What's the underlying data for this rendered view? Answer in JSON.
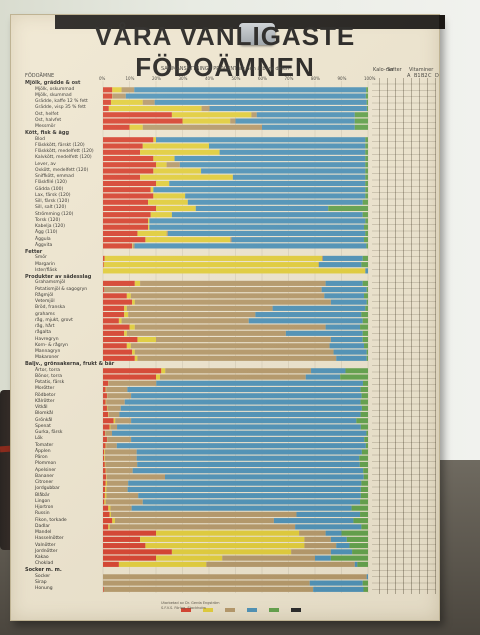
{
  "poster": {
    "title": "VÅRA VANLIGASTE FÖDOÄMNEN",
    "column_header": "FÖDOÄMNE",
    "composition_header": "SAMMANSÄTTNING I PROCENT av den ätbara delen",
    "right_headers": [
      "Kalo-rier",
      "Salter",
      "Vitaminer"
    ],
    "vitamin_cols": [
      "A",
      "B1",
      "B2",
      "C",
      "D"
    ],
    "axis_ticks": [
      "0%",
      "10%",
      "20%",
      "30%",
      "40%",
      "50%",
      "60%",
      "70%",
      "80%",
      "90%",
      "100%"
    ]
  },
  "colors": {
    "protein": "#d8412d",
    "fat": "#e4cf3a",
    "carbohydrate": "#b79a6a",
    "water": "#4f93b8",
    "other": "#64a34c",
    "waste": "#2a2a2a"
  },
  "sections": [
    {
      "label": "Mjölk, grädde & ost",
      "rows": [
        {
          "name": "Mjölk, oskummad",
          "c": [
            3.5,
            3.5,
            4.8,
            87.5,
            0.7,
            0
          ]
        },
        {
          "name": "Mjölk, skummad",
          "c": [
            3.5,
            0.1,
            5,
            90.6,
            0.8,
            0
          ]
        },
        {
          "name": "Grädde, kaffe 12 % fett",
          "c": [
            3,
            12,
            4.5,
            80,
            0.5,
            0
          ]
        },
        {
          "name": "Grädde, visp 35 % fett",
          "c": [
            2.2,
            35,
            3,
            59.4,
            0.4,
            0
          ]
        },
        {
          "name": "Ost, helfet",
          "c": [
            26,
            30,
            2,
            37,
            5,
            0
          ]
        },
        {
          "name": "Ost, halvfet",
          "c": [
            30,
            18,
            2,
            45,
            5,
            0
          ]
        },
        {
          "name": "Messmör",
          "c": [
            10,
            5,
            45,
            35,
            5,
            0
          ]
        }
      ]
    },
    {
      "label": "Kött, fisk & ägg",
      "rows": [
        {
          "name": "Blod",
          "c": [
            19,
            1,
            0,
            79,
            1,
            0
          ]
        },
        {
          "name": "Fläskkött, färskt (120)",
          "c": [
            15,
            25,
            0,
            59,
            1,
            0
          ]
        },
        {
          "name": "Fläskkött, medelfett (120)",
          "c": [
            14,
            30,
            0,
            55,
            1,
            0
          ]
        },
        {
          "name": "Kalvkött, medelfett (120)",
          "c": [
            19,
            8,
            0,
            72,
            1,
            0
          ]
        },
        {
          "name": "Lever, av",
          "c": [
            20,
            4,
            5,
            70,
            1,
            0
          ]
        },
        {
          "name": "Oxkött, medelfett (120)",
          "c": [
            19,
            18,
            0,
            62,
            1,
            0
          ]
        },
        {
          "name": "Sniffkött, emmad",
          "c": [
            14,
            35,
            0,
            50,
            1,
            0
          ]
        },
        {
          "name": "Fläskfilé (120)",
          "c": [
            20,
            5,
            0,
            74,
            1,
            0
          ]
        },
        {
          "name": "Gädda (100)",
          "c": [
            18,
            1,
            0,
            80,
            1,
            0
          ]
        },
        {
          "name": "Lax, färsk (120)",
          "c": [
            19,
            12,
            0,
            68,
            1,
            0
          ]
        },
        {
          "name": "Sill, färsk (120)",
          "c": [
            17,
            15,
            0,
            66,
            2,
            0
          ]
        },
        {
          "name": "Sill, salt (120)",
          "c": [
            20,
            15,
            0,
            50,
            15,
            0
          ]
        },
        {
          "name": "Strömming (120)",
          "c": [
            18,
            8,
            0,
            72,
            2,
            0
          ]
        },
        {
          "name": "Torsk (120)",
          "c": [
            17,
            0.5,
            0,
            81.5,
            1,
            0
          ]
        },
        {
          "name": "Kabelja (120)",
          "c": [
            17,
            0.5,
            0,
            81,
            1.5,
            0
          ]
        },
        {
          "name": "Ägg (110)",
          "c": [
            13,
            11,
            0.5,
            74.5,
            1,
            0
          ]
        },
        {
          "name": "Äggula",
          "c": [
            16,
            32,
            0.5,
            50,
            1.5,
            0
          ]
        },
        {
          "name": "Äggvita",
          "c": [
            11,
            0.2,
            0.7,
            87.5,
            0.6,
            0
          ]
        }
      ]
    },
    {
      "label": "Fetter",
      "rows": [
        {
          "name": "Smör",
          "c": [
            0.6,
            82,
            0.4,
            15,
            2,
            0
          ]
        },
        {
          "name": "Margarin",
          "c": [
            0.3,
            81,
            0.2,
            16,
            2.5,
            0
          ]
        },
        {
          "name": "Ister/fläsk",
          "c": [
            0,
            99,
            0,
            1,
            0,
            0
          ]
        }
      ]
    },
    {
      "label": "Produkter av sädesslag",
      "rows": [
        {
          "name": "Grahamsmjöl",
          "c": [
            12,
            2,
            70,
            14,
            2,
            0
          ]
        },
        {
          "name": "Potatismjöl & sagogryn",
          "c": [
            0.5,
            0,
            82,
            17,
            0.5,
            0
          ]
        },
        {
          "name": "Rågmjöl",
          "c": [
            9,
            1.5,
            73,
            15,
            1.5,
            0
          ]
        },
        {
          "name": "Vetemjöl",
          "c": [
            11,
            1,
            74,
            13.5,
            0.5,
            0
          ]
        },
        {
          "name": "Bröd, franska",
          "c": [
            8,
            1,
            55,
            35,
            1,
            0
          ]
        },
        {
          "name": "grahams",
          "c": [
            8,
            1.5,
            48,
            40,
            2.5,
            0
          ]
        },
        {
          "name": "råg, mjukt, grovt",
          "c": [
            6,
            1,
            48,
            43,
            2,
            0
          ]
        },
        {
          "name": "råg, hårt",
          "c": [
            10,
            2,
            72,
            13,
            3,
            0
          ]
        },
        {
          "name": "rågalta",
          "c": [
            8,
            1,
            60,
            29,
            2,
            0
          ]
        },
        {
          "name": "Havregryn",
          "c": [
            13,
            7,
            66,
            12,
            2,
            0
          ]
        },
        {
          "name": "Korn- & rågryn",
          "c": [
            9,
            1.5,
            75,
            13,
            1.5,
            0
          ]
        },
        {
          "name": "Mannagryn",
          "c": [
            11,
            1,
            75,
            12.5,
            0.5,
            0
          ]
        },
        {
          "name": "Makaroner",
          "c": [
            12,
            1,
            75,
            11.5,
            0.5,
            0
          ]
        }
      ]
    },
    {
      "label": "Baljv., grönsakerna, frukt & bär",
      "rows": [
        {
          "name": "Ärtor, torra",
          "c": [
            22,
            1.5,
            55,
            13,
            8.5,
            0
          ]
        },
        {
          "name": "Bönor, torra",
          "c": [
            20,
            1.5,
            55,
            13,
            10.5,
            0
          ]
        },
        {
          "name": "Potatis, färsk",
          "c": [
            2,
            0.1,
            18,
            78,
            1.9,
            0
          ]
        },
        {
          "name": "Morötter",
          "c": [
            1,
            0.2,
            8,
            88,
            2.8,
            0
          ]
        },
        {
          "name": "Rödbetor",
          "c": [
            1.5,
            0.1,
            9,
            87,
            2.4,
            0
          ]
        },
        {
          "name": "Kålrötter",
          "c": [
            1,
            0.2,
            7,
            89,
            2.8,
            0
          ]
        },
        {
          "name": "Vitkål",
          "c": [
            1.5,
            0.2,
            5,
            91,
            2.3,
            0
          ]
        },
        {
          "name": "Blomkål",
          "c": [
            2,
            0.2,
            4,
            91,
            2.8,
            0
          ]
        },
        {
          "name": "Grönkål",
          "c": [
            4,
            0.6,
            6,
            85,
            4.4,
            0
          ]
        },
        {
          "name": "Spenat",
          "c": [
            2.5,
            0.3,
            2.5,
            92,
            2.7,
            0
          ]
        },
        {
          "name": "Gurka, färsk",
          "c": [
            0.8,
            0.1,
            2.5,
            96,
            0.6,
            0
          ]
        },
        {
          "name": "Lök",
          "c": [
            1.5,
            0.1,
            9,
            88,
            1.4,
            0
          ]
        },
        {
          "name": "Tomater",
          "c": [
            1,
            0.2,
            4,
            94,
            0.8,
            0
          ]
        },
        {
          "name": "Äpplen",
          "c": [
            0.4,
            0.3,
            12,
            85,
            2.3,
            0
          ]
        },
        {
          "name": "Päron",
          "c": [
            0.4,
            0.3,
            12,
            84,
            3.3,
            0
          ]
        },
        {
          "name": "Plommon",
          "c": [
            0.7,
            0.2,
            12,
            84,
            3.1,
            0
          ]
        },
        {
          "name": "Apelsiner",
          "c": [
            1,
            0.2,
            10,
            87,
            1.8,
            0
          ]
        },
        {
          "name": "Bananer",
          "c": [
            1.2,
            0.2,
            22,
            75,
            1.6,
            0
          ]
        },
        {
          "name": "Citroner",
          "c": [
            1,
            0.5,
            8,
            88,
            2.5,
            0
          ]
        },
        {
          "name": "Jordgubbar",
          "c": [
            0.8,
            0.5,
            8,
            88,
            2.7,
            0
          ]
        },
        {
          "name": "Blåbär",
          "c": [
            0.7,
            0.6,
            12,
            84,
            2.7,
            0
          ]
        },
        {
          "name": "Lingon",
          "c": [
            0.5,
            0.5,
            14,
            82,
            3,
            0
          ]
        },
        {
          "name": "Hjortron",
          "c": [
            2,
            0.8,
            8,
            83,
            6.2,
            0
          ]
        },
        {
          "name": "Russin",
          "c": [
            2.5,
            0.5,
            70,
            24,
            3,
            0
          ]
        },
        {
          "name": "Fikon, torkade",
          "c": [
            3.5,
            1,
            60,
            30,
            5.5,
            0
          ]
        },
        {
          "name": "Dadlar",
          "c": [
            2,
            0.5,
            70,
            25,
            2.5,
            0
          ]
        },
        {
          "name": "Mandel",
          "c": [
            20,
            54,
            10,
            6,
            10,
            0
          ]
        },
        {
          "name": "Hasselnötter",
          "c": [
            14,
            62,
            10,
            6,
            8,
            0
          ]
        },
        {
          "name": "Valnötter",
          "c": [
            16,
            60,
            12,
            5,
            7,
            0
          ]
        },
        {
          "name": "Jordnötter",
          "c": [
            26,
            45,
            15,
            8,
            6,
            0
          ]
        },
        {
          "name": "Kakao",
          "c": [
            20,
            25,
            35,
            6,
            14,
            0
          ]
        },
        {
          "name": "Choklad",
          "c": [
            6,
            33,
            56,
            1,
            4,
            0
          ]
        }
      ]
    },
    {
      "label": "Socker m. m.",
      "rows": [
        {
          "name": "Socker",
          "c": [
            0,
            0,
            99.5,
            0.5,
            0,
            0
          ]
        },
        {
          "name": "Sirap",
          "c": [
            0,
            0,
            78,
            20,
            2,
            0
          ]
        },
        {
          "name": "Honung",
          "c": [
            0.3,
            0,
            79,
            19,
            1.7,
            0
          ]
        }
      ]
    }
  ],
  "footer": {
    "note": "Utarbetad av Dr. Gerda Engström",
    "publisher": "S.F.V.S. Förlag, Stockholm",
    "legend": [
      "Äggvita",
      "Fett",
      "Kolhydrater",
      "Vatten",
      "Salter m. m.",
      "Avfall"
    ]
  }
}
